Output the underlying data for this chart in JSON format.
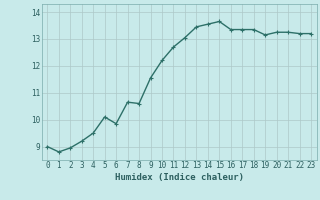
{
  "x": [
    0,
    1,
    2,
    3,
    4,
    5,
    6,
    7,
    8,
    9,
    10,
    11,
    12,
    13,
    14,
    15,
    16,
    17,
    18,
    19,
    20,
    21,
    22,
    23
  ],
  "y": [
    9.0,
    8.8,
    8.95,
    9.2,
    9.5,
    10.1,
    9.85,
    10.65,
    10.6,
    11.55,
    12.2,
    12.7,
    13.05,
    13.45,
    13.55,
    13.65,
    13.35,
    13.35,
    13.35,
    13.15,
    13.25,
    13.25,
    13.2,
    13.2
  ],
  "line_color": "#2d7068",
  "marker_color": "#2d7068",
  "bg_color": "#c8eaea",
  "grid_color": "#adc8c8",
  "xlabel": "Humidex (Indice chaleur)",
  "ylim": [
    8.5,
    14.3
  ],
  "xlim": [
    -0.5,
    23.5
  ],
  "yticks": [
    9,
    10,
    11,
    12,
    13,
    14
  ],
  "xticks": [
    0,
    1,
    2,
    3,
    4,
    5,
    6,
    7,
    8,
    9,
    10,
    11,
    12,
    13,
    14,
    15,
    16,
    17,
    18,
    19,
    20,
    21,
    22,
    23
  ],
  "xlabel_fontsize": 6.5,
  "tick_fontsize": 5.5,
  "line_width": 1.0,
  "marker_size": 2.5
}
